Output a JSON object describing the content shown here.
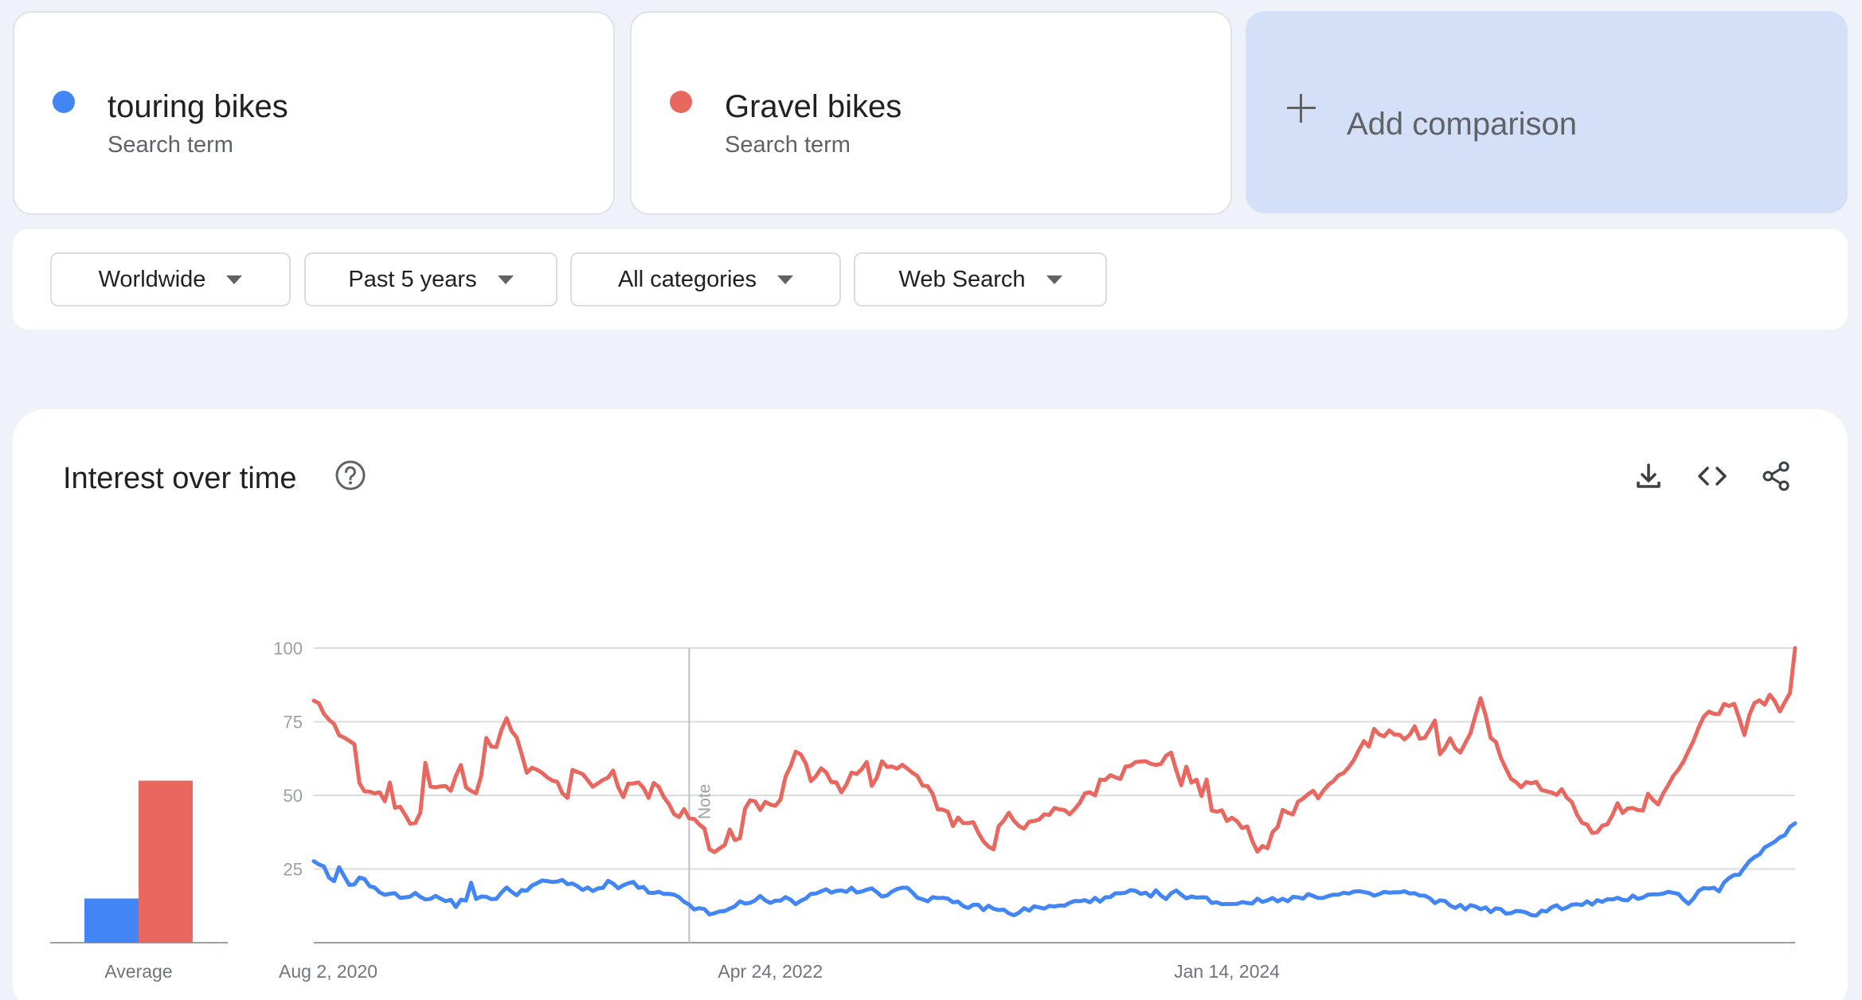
{
  "terms": [
    {
      "name": "touring bikes",
      "type": "Search term",
      "color": "#4285f4"
    },
    {
      "name": "Gravel bikes",
      "type": "Search term",
      "color": "#e8675f"
    }
  ],
  "add_comparison": "Add comparison",
  "filters": [
    {
      "label": "Worldwide"
    },
    {
      "label": "Past 5 years"
    },
    {
      "label": "All categories"
    },
    {
      "label": "Web Search"
    }
  ],
  "section": {
    "title": "Interest over time",
    "icons": [
      "help-icon",
      "download-icon",
      "embed-code-icon",
      "share-icon"
    ]
  },
  "chart_data": {
    "type": "line",
    "title": "Interest over time",
    "y_ticks": [
      "100",
      "75",
      "50",
      "25"
    ],
    "ylim": [
      0,
      100
    ],
    "x_labels": [
      "Aug 2, 2020",
      "Apr 24, 2022",
      "Jan 14, 2024"
    ],
    "x_label_weeks": [
      0,
      90,
      180
    ],
    "note_label": "Note",
    "note_week": 74,
    "grid": true,
    "average": {
      "label": "Average",
      "values": [
        {
          "name": "touring bikes",
          "value": 15
        },
        {
          "name": "Gravel bikes",
          "value": 55
        }
      ]
    },
    "series": [
      {
        "name": "touring bikes",
        "color": "#4285f4",
        "keypoints": [
          [
            0,
            27
          ],
          [
            2,
            25
          ],
          [
            4,
            20
          ],
          [
            5,
            25
          ],
          [
            7,
            20
          ],
          [
            10,
            22
          ],
          [
            12,
            18
          ],
          [
            15,
            16
          ],
          [
            20,
            16
          ],
          [
            25,
            15
          ],
          [
            28,
            13
          ],
          [
            30,
            15
          ],
          [
            31,
            21
          ],
          [
            32,
            14
          ],
          [
            34,
            16
          ],
          [
            36,
            15
          ],
          [
            38,
            18
          ],
          [
            40,
            17
          ],
          [
            44,
            20
          ],
          [
            48,
            21
          ],
          [
            52,
            19
          ],
          [
            56,
            18
          ],
          [
            58,
            20
          ],
          [
            60,
            19
          ],
          [
            63,
            20
          ],
          [
            66,
            17
          ],
          [
            70,
            16
          ],
          [
            72,
            15
          ],
          [
            74,
            13
          ],
          [
            76,
            11
          ],
          [
            78,
            10
          ],
          [
            80,
            10
          ],
          [
            82,
            11
          ],
          [
            84,
            14
          ],
          [
            86,
            14
          ],
          [
            88,
            15
          ],
          [
            90,
            13
          ],
          [
            92,
            15
          ],
          [
            95,
            14
          ],
          [
            98,
            16
          ],
          [
            100,
            18
          ],
          [
            102,
            17
          ],
          [
            105,
            18
          ],
          [
            108,
            17
          ],
          [
            110,
            18
          ],
          [
            112,
            16
          ],
          [
            115,
            19
          ],
          [
            118,
            17
          ],
          [
            120,
            15
          ],
          [
            122,
            15
          ],
          [
            125,
            14
          ],
          [
            128,
            13
          ],
          [
            130,
            12
          ],
          [
            133,
            12
          ],
          [
            135,
            11
          ],
          [
            138,
            10
          ],
          [
            140,
            11
          ],
          [
            143,
            12
          ],
          [
            146,
            12
          ],
          [
            149,
            13
          ],
          [
            152,
            15
          ],
          [
            155,
            14
          ],
          [
            158,
            16
          ],
          [
            161,
            17
          ],
          [
            164,
            16
          ],
          [
            166,
            17
          ],
          [
            168,
            15
          ],
          [
            170,
            17
          ],
          [
            172,
            16
          ],
          [
            175,
            15
          ],
          [
            178,
            14
          ],
          [
            180,
            13
          ],
          [
            183,
            14
          ],
          [
            186,
            14
          ],
          [
            190,
            15
          ],
          [
            194,
            15
          ],
          [
            198,
            16
          ],
          [
            201,
            16
          ],
          [
            205,
            17
          ],
          [
            208,
            16
          ],
          [
            212,
            17
          ],
          [
            215,
            17
          ],
          [
            218,
            16
          ],
          [
            221,
            14
          ],
          [
            224,
            13
          ],
          [
            227,
            12
          ],
          [
            230,
            12
          ],
          [
            233,
            11
          ],
          [
            236,
            10
          ],
          [
            238,
            10
          ],
          [
            241,
            10
          ],
          [
            244,
            12
          ],
          [
            247,
            12
          ],
          [
            250,
            13
          ],
          [
            253,
            14
          ],
          [
            256,
            14
          ],
          [
            259,
            15
          ],
          [
            262,
            16
          ],
          [
            265,
            17
          ],
          [
            267,
            17
          ],
          [
            269,
            16
          ],
          [
            271,
            14
          ],
          [
            273,
            17
          ],
          [
            275,
            19
          ],
          [
            277,
            18
          ],
          [
            279,
            21
          ]
        ]
      },
      {
        "name": "Gravel bikes",
        "color": "#e8675f",
        "keypoints": [
          [
            0,
            81
          ],
          [
            2,
            79
          ],
          [
            4,
            73
          ],
          [
            6,
            70
          ],
          [
            8,
            67
          ],
          [
            9,
            55
          ],
          [
            11,
            50
          ],
          [
            13,
            52
          ],
          [
            14,
            48
          ],
          [
            15,
            55
          ],
          [
            16,
            47
          ],
          [
            18,
            44
          ],
          [
            19,
            41
          ],
          [
            21,
            43
          ],
          [
            22,
            62
          ],
          [
            23,
            52
          ],
          [
            25,
            54
          ],
          [
            27,
            52
          ],
          [
            29,
            60
          ],
          [
            30,
            54
          ],
          [
            32,
            51
          ],
          [
            33,
            58
          ],
          [
            34,
            68
          ],
          [
            36,
            66
          ],
          [
            37,
            72
          ],
          [
            38,
            75
          ],
          [
            40,
            70
          ],
          [
            42,
            58
          ],
          [
            44,
            59
          ],
          [
            47,
            56
          ],
          [
            48,
            54
          ],
          [
            50,
            50
          ],
          [
            51,
            58
          ],
          [
            53,
            56
          ],
          [
            55,
            52
          ],
          [
            57,
            55
          ],
          [
            59,
            57
          ],
          [
            61,
            50
          ],
          [
            62,
            55
          ],
          [
            64,
            54
          ],
          [
            66,
            50
          ],
          [
            67,
            53
          ],
          [
            69,
            50
          ],
          [
            71,
            44
          ],
          [
            73,
            44
          ],
          [
            75,
            41
          ],
          [
            77,
            39
          ],
          [
            78,
            33
          ],
          [
            79,
            30
          ],
          [
            80,
            31
          ],
          [
            82,
            37
          ],
          [
            84,
            35
          ],
          [
            85,
            45
          ],
          [
            86,
            48
          ],
          [
            88,
            46
          ],
          [
            90,
            48
          ],
          [
            91,
            45
          ],
          [
            93,
            55
          ],
          [
            94,
            60
          ],
          [
            95,
            64
          ],
          [
            97,
            62
          ],
          [
            98,
            55
          ],
          [
            99,
            58
          ],
          [
            100,
            60
          ],
          [
            102,
            56
          ],
          [
            103,
            55
          ],
          [
            104,
            52
          ],
          [
            106,
            57
          ],
          [
            108,
            60
          ],
          [
            109,
            60
          ],
          [
            110,
            53
          ],
          [
            112,
            62
          ],
          [
            114,
            60
          ],
          [
            116,
            59
          ],
          [
            118,
            58
          ],
          [
            120,
            54
          ],
          [
            122,
            50
          ],
          [
            123,
            45
          ],
          [
            124,
            46
          ],
          [
            125,
            45
          ],
          [
            126,
            41
          ],
          [
            128,
            42
          ],
          [
            130,
            42
          ],
          [
            131,
            38
          ],
          [
            132,
            33
          ],
          [
            134,
            32
          ],
          [
            135,
            40
          ],
          [
            137,
            43
          ],
          [
            139,
            40
          ],
          [
            141,
            40
          ],
          [
            143,
            42
          ],
          [
            145,
            43
          ],
          [
            146,
            46
          ],
          [
            147,
            44
          ],
          [
            149,
            44
          ],
          [
            151,
            47
          ],
          [
            152,
            50
          ],
          [
            154,
            50
          ],
          [
            155,
            54
          ],
          [
            157,
            56
          ],
          [
            159,
            57
          ],
          [
            161,
            60
          ],
          [
            163,
            62
          ],
          [
            165,
            60
          ],
          [
            167,
            61
          ],
          [
            169,
            64
          ],
          [
            170,
            60
          ],
          [
            171,
            54
          ],
          [
            172,
            60
          ],
          [
            173,
            53
          ],
          [
            174,
            55
          ],
          [
            175,
            51
          ],
          [
            176,
            55
          ],
          [
            177,
            46
          ],
          [
            179,
            45
          ],
          [
            180,
            42
          ],
          [
            182,
            40
          ],
          [
            184,
            38
          ],
          [
            186,
            32
          ],
          [
            188,
            33
          ],
          [
            189,
            37
          ],
          [
            190,
            40
          ],
          [
            191,
            44
          ],
          [
            193,
            44
          ],
          [
            195,
            50
          ],
          [
            197,
            52
          ],
          [
            198,
            48
          ],
          [
            200,
            55
          ],
          [
            202,
            57
          ],
          [
            204,
            60
          ],
          [
            205,
            62
          ],
          [
            206,
            66
          ],
          [
            208,
            68
          ],
          [
            209,
            72
          ],
          [
            211,
            70
          ],
          [
            213,
            72
          ],
          [
            215,
            70
          ],
          [
            217,
            72
          ],
          [
            219,
            69
          ],
          [
            221,
            74
          ],
          [
            222,
            64
          ],
          [
            224,
            70
          ],
          [
            226,
            64
          ],
          [
            228,
            72
          ],
          [
            230,
            82
          ],
          [
            232,
            70
          ],
          [
            233,
            67
          ],
          [
            234,
            62
          ],
          [
            236,
            57
          ],
          [
            238,
            54
          ],
          [
            240,
            54
          ],
          [
            243,
            52
          ],
          [
            246,
            51
          ],
          [
            248,
            47
          ],
          [
            249,
            43
          ],
          [
            251,
            40
          ],
          [
            253,
            37
          ],
          [
            255,
            40
          ],
          [
            257,
            48
          ],
          [
            258,
            44
          ],
          [
            260,
            47
          ],
          [
            262,
            44
          ],
          [
            263,
            50
          ],
          [
            265,
            47
          ],
          [
            267,
            54
          ],
          [
            268,
            58
          ],
          [
            270,
            62
          ],
          [
            271,
            64
          ],
          [
            272,
            68
          ],
          [
            273,
            72
          ],
          [
            274,
            77
          ],
          [
            276,
            78
          ],
          [
            278,
            80
          ],
          [
            280,
            82
          ],
          [
            281,
            77
          ],
          [
            282,
            72
          ],
          [
            283,
            78
          ],
          [
            284,
            82
          ],
          [
            286,
            80
          ],
          [
            287,
            84
          ],
          [
            289,
            80
          ],
          [
            290,
            82
          ],
          [
            291,
            86
          ],
          [
            292,
            100
          ]
        ]
      }
    ]
  }
}
